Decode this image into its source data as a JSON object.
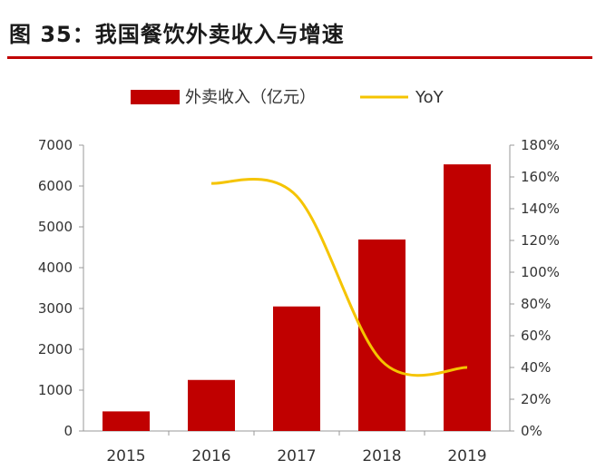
{
  "header": {
    "figure_label": "图 35：",
    "title": "我国餐饮外卖收入与增速"
  },
  "colors": {
    "bar": "#c00000",
    "line": "#f5c400",
    "axis": "#999999",
    "rule": "#c00000"
  },
  "chart_data": {
    "type": "bar",
    "title": "我国餐饮外卖收入与增速",
    "categories": [
      "2015",
      "2016",
      "2017",
      "2018",
      "2019"
    ],
    "legend_position": "top",
    "grid": false,
    "series": [
      {
        "name": "外卖收入（亿元）",
        "type": "bar",
        "axis": "left",
        "values": [
          480,
          1250,
          3050,
          4690,
          6530
        ]
      },
      {
        "name": "YoY",
        "type": "line",
        "axis": "right",
        "smooth": true,
        "values": [
          null,
          1.56,
          1.48,
          0.44,
          0.4
        ]
      }
    ],
    "y_left": {
      "ylim": [
        0,
        7000
      ],
      "ticks": [
        "0",
        "1000",
        "2000",
        "3000",
        "4000",
        "5000",
        "6000",
        "7000"
      ]
    },
    "y_right": {
      "ylim": [
        0,
        1.8
      ],
      "ticks": [
        "0%",
        "20%",
        "40%",
        "60%",
        "80%",
        "100%",
        "120%",
        "140%",
        "160%",
        "180%"
      ]
    }
  }
}
